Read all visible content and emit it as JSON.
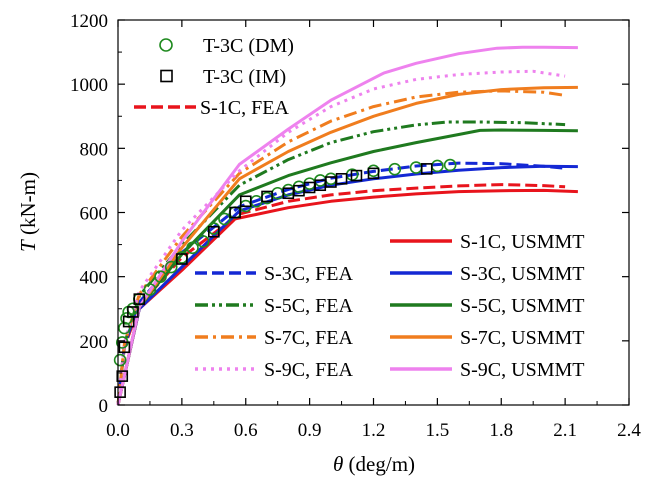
{
  "chart_data": {
    "type": "line",
    "xlabel_var": "θ",
    "xlabel_unit": " (deg/m)",
    "ylabel_var": "T",
    "ylabel_unit": " (kN-m)",
    "xlim": [
      0.0,
      2.4
    ],
    "ylim": [
      0,
      1200
    ],
    "xticks": [
      "0.0",
      "0.3",
      "0.6",
      "0.9",
      "1.2",
      "1.5",
      "1.8",
      "2.1",
      "2.4"
    ],
    "yticks": [
      "0",
      "200",
      "400",
      "600",
      "800",
      "1000",
      "1200"
    ],
    "grid": false,
    "colors": {
      "S-1C": "#e8141c",
      "S-3C": "#1428d4",
      "S-5C": "#1f7a1f",
      "S-7C": "#f07d1e",
      "S-9C": "#ee82ee",
      "DM": "#1f8a1f",
      "IM": "#000000"
    },
    "series": [
      {
        "name": "S-1C, USMMT",
        "style": "solid",
        "color_key": "S-1C",
        "x": [
          0,
          0.1,
          0.3,
          0.55,
          0.8,
          1.0,
          1.2,
          1.4,
          1.6,
          1.8,
          2.0,
          2.16
        ],
        "y": [
          0,
          300,
          420,
          580,
          615,
          635,
          648,
          658,
          665,
          668,
          669,
          665
        ]
      },
      {
        "name": "S-1C, FEA",
        "style": "dash",
        "color_key": "S-1C",
        "x": [
          0,
          0.03,
          0.1,
          0.3,
          0.57,
          0.8,
          1.0,
          1.2,
          1.4,
          1.6,
          1.8,
          2.0,
          2.1
        ],
        "y": [
          0,
          180,
          310,
          460,
          595,
          635,
          655,
          668,
          676,
          683,
          687,
          684,
          680
        ]
      },
      {
        "name": "S-3C, USMMT",
        "style": "solid",
        "color_key": "S-3C",
        "x": [
          0,
          0.1,
          0.3,
          0.57,
          0.8,
          1.0,
          1.2,
          1.4,
          1.6,
          1.8,
          2.0,
          2.16
        ],
        "y": [
          0,
          300,
          430,
          605,
          655,
          685,
          705,
          720,
          732,
          740,
          744,
          743
        ]
      },
      {
        "name": "S-3C, FEA",
        "style": "dash",
        "color_key": "S-3C",
        "x": [
          0,
          0.03,
          0.1,
          0.3,
          0.57,
          0.8,
          1.0,
          1.2,
          1.4,
          1.6,
          1.8,
          2.0,
          2.1
        ],
        "y": [
          0,
          185,
          320,
          475,
          618,
          672,
          707,
          728,
          745,
          754,
          752,
          744,
          738
        ]
      },
      {
        "name": "S-5C, USMMT",
        "style": "solid",
        "color_key": "S-5C",
        "x": [
          0,
          0.1,
          0.3,
          0.57,
          0.8,
          1.0,
          1.2,
          1.4,
          1.6,
          1.7,
          1.8,
          2.0,
          2.16
        ],
        "y": [
          0,
          305,
          470,
          655,
          715,
          755,
          790,
          818,
          843,
          856,
          857,
          856,
          855
        ]
      },
      {
        "name": "S-5C, FEA",
        "style": "dashdotdot",
        "color_key": "S-5C",
        "x": [
          0,
          0.03,
          0.1,
          0.3,
          0.57,
          0.8,
          1.0,
          1.2,
          1.4,
          1.55,
          1.7,
          1.9,
          2.1
        ],
        "y": [
          0,
          190,
          340,
          500,
          685,
          765,
          818,
          852,
          873,
          882,
          882,
          880,
          874
        ]
      },
      {
        "name": "S-7C, USMMT",
        "style": "solid",
        "color_key": "S-7C",
        "x": [
          0,
          0.1,
          0.3,
          0.57,
          0.8,
          1.0,
          1.2,
          1.4,
          1.6,
          1.8,
          2.0,
          2.16
        ],
        "y": [
          0,
          305,
          490,
          705,
          790,
          850,
          900,
          940,
          968,
          983,
          989,
          990
        ]
      },
      {
        "name": "S-7C, FEA",
        "style": "dashdot",
        "color_key": "S-7C",
        "x": [
          0,
          0.03,
          0.1,
          0.3,
          0.57,
          0.8,
          1.0,
          1.2,
          1.4,
          1.6,
          1.8,
          2.0,
          2.1
        ],
        "y": [
          0,
          190,
          345,
          525,
          722,
          820,
          885,
          930,
          960,
          975,
          979,
          975,
          965
        ]
      },
      {
        "name": "S-9C, USMMT",
        "style": "solid",
        "color_key": "S-9C",
        "x": [
          0,
          0.1,
          0.3,
          0.57,
          0.8,
          1.0,
          1.25,
          1.4,
          1.6,
          1.78,
          1.9,
          2.0,
          2.16
        ],
        "y": [
          0,
          305,
          510,
          750,
          860,
          950,
          1035,
          1065,
          1095,
          1112,
          1115,
          1115,
          1114
        ]
      },
      {
        "name": "S-9C, FEA",
        "style": "dot",
        "color_key": "S-9C",
        "x": [
          0,
          0.03,
          0.1,
          0.3,
          0.57,
          0.8,
          1.0,
          1.2,
          1.4,
          1.6,
          1.8,
          1.95,
          2.1
        ],
        "y": [
          0,
          195,
          355,
          545,
          730,
          850,
          930,
          985,
          1015,
          1030,
          1038,
          1040,
          1025
        ]
      }
    ],
    "markers": [
      {
        "name": "T-3C (DM)",
        "shape": "circle",
        "color_key": "DM",
        "x": [
          0.01,
          0.02,
          0.03,
          0.04,
          0.05,
          0.07,
          0.1,
          0.15,
          0.2,
          0.25,
          0.3,
          0.35,
          0.4,
          0.45,
          0.5,
          0.55,
          0.6,
          0.65,
          0.7,
          0.75,
          0.8,
          0.85,
          0.9,
          0.95,
          1.0,
          1.1,
          1.2,
          1.3,
          1.4,
          1.5,
          1.56
        ],
        "y": [
          140,
          195,
          240,
          270,
          290,
          300,
          330,
          360,
          400,
          430,
          460,
          490,
          510,
          550,
          580,
          600,
          620,
          635,
          645,
          660,
          670,
          680,
          690,
          700,
          705,
          718,
          730,
          735,
          740,
          745,
          748
        ]
      },
      {
        "name": "T-3C (IM)",
        "shape": "square",
        "color_key": "IM",
        "x": [
          0.01,
          0.02,
          0.03,
          0.05,
          0.07,
          0.1,
          0.3,
          0.45,
          0.55,
          0.6,
          0.7,
          0.8,
          0.85,
          0.9,
          0.95,
          1.0,
          1.05,
          1.12,
          1.2,
          1.45
        ],
        "y": [
          40,
          90,
          180,
          260,
          290,
          330,
          455,
          540,
          600,
          635,
          650,
          660,
          668,
          678,
          685,
          695,
          705,
          715,
          722,
          736
        ]
      }
    ],
    "legend_top": [
      {
        "label": "T-3C (DM)",
        "kind": "marker",
        "ref": "DM"
      },
      {
        "label": "T-3C (IM)",
        "kind": "marker",
        "ref": "IM"
      },
      {
        "label": "S-1C, FEA",
        "kind": "line",
        "ref": "S-1C, FEA"
      }
    ],
    "legend_bottom": [
      {
        "label": "S-1C, USMMT",
        "ref": "S-1C, USMMT",
        "col": 1,
        "row": 0
      },
      {
        "label": "S-3C, FEA",
        "ref": "S-3C, FEA",
        "col": 0,
        "row": 1
      },
      {
        "label": "S-3C, USMMT",
        "ref": "S-3C, USMMT",
        "col": 1,
        "row": 1
      },
      {
        "label": "S-5C, FEA",
        "ref": "S-5C, FEA",
        "col": 0,
        "row": 2
      },
      {
        "label": "S-5C, USMMT",
        "ref": "S-5C, USMMT",
        "col": 1,
        "row": 2
      },
      {
        "label": "S-7C, FEA",
        "ref": "S-7C, FEA",
        "col": 0,
        "row": 3
      },
      {
        "label": "S-7C, USMMT",
        "ref": "S-7C, USMMT",
        "col": 1,
        "row": 3
      },
      {
        "label": "S-9C, FEA",
        "ref": "S-9C, FEA",
        "col": 0,
        "row": 4
      },
      {
        "label": "S-9C, USMMT",
        "ref": "S-9C, USMMT",
        "col": 1,
        "row": 4
      }
    ]
  }
}
